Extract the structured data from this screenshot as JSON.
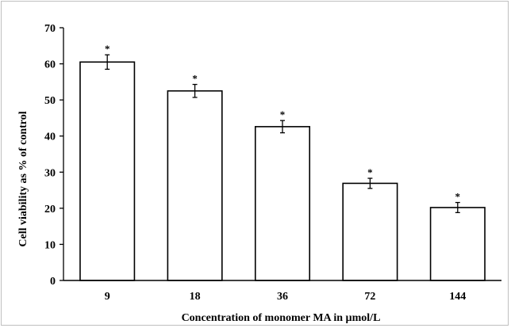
{
  "chart_data": {
    "type": "bar",
    "categories": [
      "9",
      "18",
      "36",
      "72",
      "144"
    ],
    "values": [
      60.5,
      52.5,
      42.6,
      26.9,
      20.2
    ],
    "error": [
      2.0,
      1.8,
      1.7,
      1.4,
      1.4
    ],
    "annotations": [
      "*",
      "*",
      "*",
      "*",
      "*"
    ],
    "xlabel": "Concentration of monomer MA in µmol/L",
    "ylabel": "Cell viability as % of  control",
    "ylim": [
      0,
      70
    ],
    "yticks": [
      "0",
      "10",
      "20",
      "30",
      "40",
      "50",
      "60",
      "70"
    ],
    "grid": false,
    "legend": "none",
    "bar_fill": "#ffffff",
    "bar_stroke": "#000000"
  }
}
